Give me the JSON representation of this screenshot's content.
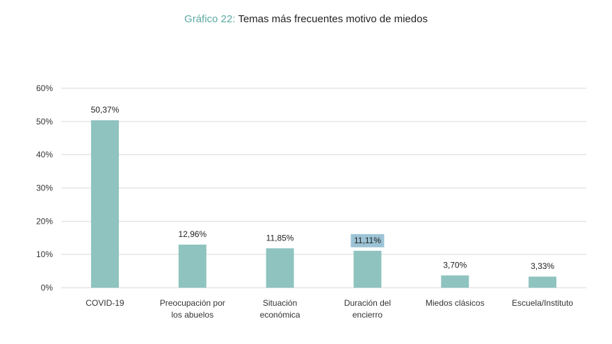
{
  "chart_data": {
    "type": "bar",
    "title_prefix": "Gráfico 22:",
    "title": "Temas más frecuentes motivo de miedos",
    "categories": [
      [
        "COVID-19"
      ],
      [
        "Preocupación por",
        "los abuelos"
      ],
      [
        "Situación",
        "económica"
      ],
      [
        "Duración del",
        "encierro"
      ],
      [
        "Miedos clásicos"
      ],
      [
        "Escuela/Instituto"
      ]
    ],
    "values": [
      50.37,
      12.96,
      11.85,
      11.11,
      3.7,
      3.33
    ],
    "data_labels": [
      "50,37%",
      "12,96%",
      "11,85%",
      "11,11%",
      "3,70%",
      "3,33%"
    ],
    "highlighted_label_index": 3,
    "ylim": [
      0,
      60
    ],
    "yticks": [
      0,
      10,
      20,
      30,
      40,
      50,
      60
    ],
    "ytick_labels": [
      "0%",
      "10%",
      "20%",
      "30%",
      "40%",
      "50%",
      "60%"
    ],
    "grid": true,
    "legend": "none",
    "colors": {
      "bar": "#8fc3bf",
      "grid": "#d9d9d9",
      "title_prefix": "#5aa9a3",
      "label_highlight": "#9cc3d5"
    }
  }
}
